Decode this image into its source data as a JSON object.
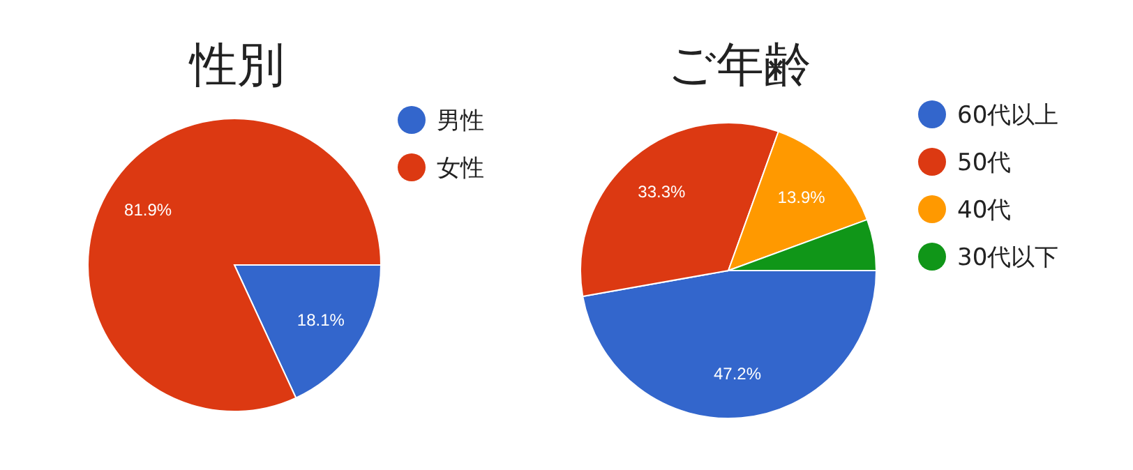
{
  "chart_data": [
    {
      "type": "pie",
      "title": "性別",
      "categories": [
        "男性",
        "女性"
      ],
      "values": [
        18.1,
        81.9
      ],
      "colors": [
        "#3366cc",
        "#dc3912"
      ],
      "value_labels": [
        "18.1%",
        "81.9%"
      ],
      "legend": "right"
    },
    {
      "type": "pie",
      "title": "ご年齢",
      "categories": [
        "60代以上",
        "50代",
        "40代",
        "30代以下"
      ],
      "values": [
        47.2,
        33.3,
        13.9,
        5.6
      ],
      "colors": [
        "#3366cc",
        "#dc3912",
        "#ff9900",
        "#109618"
      ],
      "value_labels": [
        "47.2%",
        "33.3%",
        "13.9%",
        null
      ],
      "legend": "right"
    }
  ]
}
